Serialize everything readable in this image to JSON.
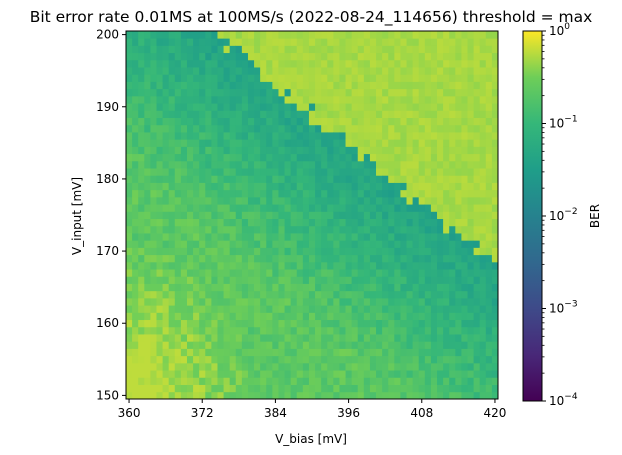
{
  "chart_data": {
    "type": "heatmap",
    "title": "Bit error rate 0.01MS at 100MS/s (2022-08-24_114656) threshold = max",
    "xlabel": "V_bias [mV]",
    "ylabel": "V_input [mV]",
    "xlim": [
      359.5,
      420.5
    ],
    "ylim": [
      149.5,
      200.5
    ],
    "x_ticks": [
      {
        "value": 360,
        "label": "360"
      },
      {
        "value": 372,
        "label": "372"
      },
      {
        "value": 384,
        "label": "384"
      },
      {
        "value": 396,
        "label": "396"
      },
      {
        "value": 408,
        "label": "408"
      },
      {
        "value": 420,
        "label": "420"
      }
    ],
    "y_ticks": [
      {
        "value": 150,
        "label": "150"
      },
      {
        "value": 160,
        "label": "160"
      },
      {
        "value": 170,
        "label": "170"
      },
      {
        "value": 180,
        "label": "180"
      },
      {
        "value": 190,
        "label": "190"
      },
      {
        "value": 200,
        "label": "200"
      }
    ],
    "grid": false,
    "colorbar": {
      "label": "BER",
      "scale": "log",
      "colormap": "viridis",
      "range": [
        0.0001,
        1
      ],
      "ticks": [
        {
          "value": 1,
          "base": "10",
          "exp": "0"
        },
        {
          "value": 0.1,
          "base": "10",
          "exp": "−1"
        },
        {
          "value": 0.01,
          "base": "10",
          "exp": "−2"
        },
        {
          "value": 0.001,
          "base": "10",
          "exp": "−3"
        },
        {
          "value": 0.0001,
          "base": "10",
          "exp": "−4"
        }
      ]
    },
    "grid_spec": {
      "x_start": 360,
      "x_step": 1,
      "x_count": 61,
      "y_start": 150,
      "y_step": 1,
      "y_count": 51
    },
    "model": {
      "boundary_line": {
        "x0": 360,
        "y0": 209,
        "x1": 420,
        "y1": 167
      },
      "upper_region_ber": 0.5,
      "lower_region_ber_range": [
        0.02,
        0.4
      ]
    }
  }
}
